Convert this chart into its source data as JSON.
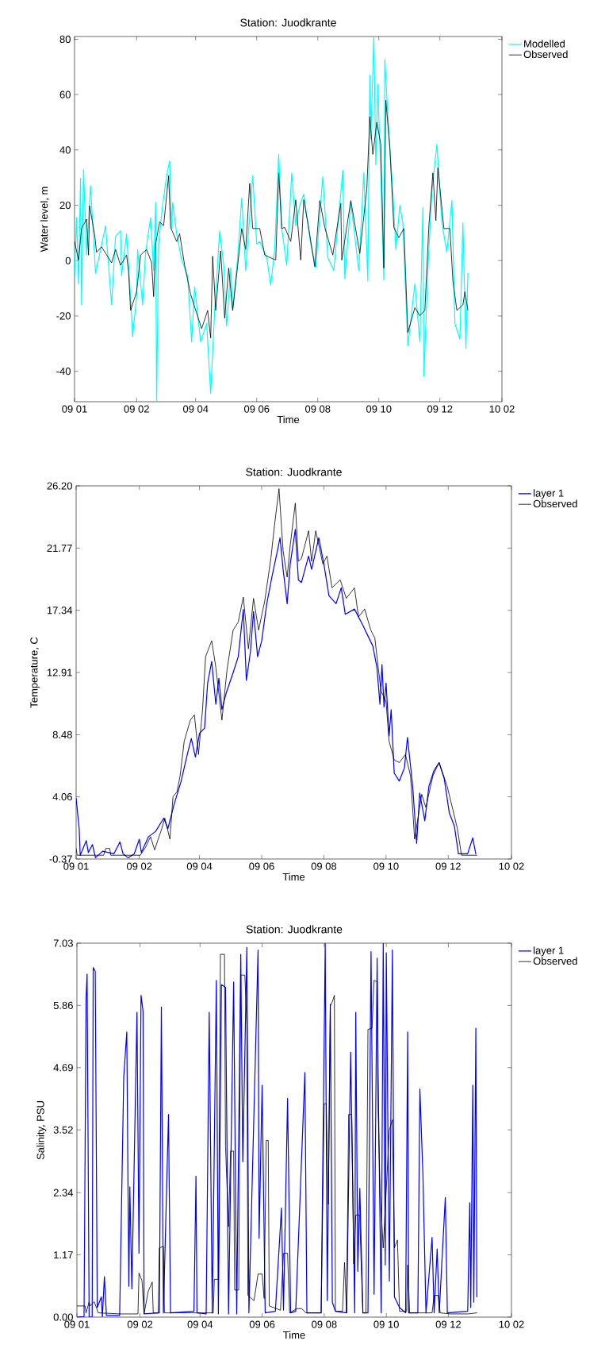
{
  "chart_data": [
    {
      "type": "line",
      "title": "Station: Juodkrante",
      "xlabel": "Time",
      "ylabel": "Water level, m",
      "xlim": [
        "2008-12-01",
        "2010-02-01"
      ],
      "xticks": [
        {
          "value": "2008-12-01",
          "label": "09 01"
        },
        {
          "value": "2009-02-01",
          "label": "09 02"
        },
        {
          "value": "2009-04-01",
          "label": "09 04"
        },
        {
          "value": "2009-06-01",
          "label": "09 06"
        },
        {
          "value": "2009-08-01",
          "label": "09 08"
        },
        {
          "value": "2009-10-01",
          "label": "09 10"
        },
        {
          "value": "2009-12-01",
          "label": "09 12"
        },
        {
          "value": "2010-02-01",
          "label": "10 02"
        }
      ],
      "ylim": [
        -51,
        81
      ],
      "yticks": [
        -40,
        -20,
        0,
        20,
        40,
        60,
        80
      ],
      "legend": "top right",
      "series": [
        {
          "name": "Modelled",
          "color": "#00ffff",
          "x": [
            "2008-12-01",
            "2008-12-03",
            "2008-12-05",
            "2008-12-07",
            "2008-12-08",
            "2008-12-10",
            "2008-12-13",
            "2008-12-17",
            "2008-12-22",
            "2008-12-27",
            "2009-01-01",
            "2009-01-07",
            "2009-01-11",
            "2009-01-16",
            "2009-01-17",
            "2009-01-22",
            "2009-01-26",
            "2009-01-28",
            "2009-02-01",
            "2009-02-02",
            "2009-02-07",
            "2009-02-10",
            "2009-02-15",
            "2009-02-18",
            "2009-02-20",
            "2009-02-21",
            "2009-02-23",
            "2009-02-27",
            "2009-03-03",
            "2009-03-06",
            "2009-03-08",
            "2009-03-09",
            "2009-03-13",
            "2009-03-18",
            "2009-03-24",
            "2009-03-28",
            "2009-03-31",
            "2009-04-06",
            "2009-04-12",
            "2009-04-16",
            "2009-04-20",
            "2009-04-25",
            "2009-04-29",
            "2009-05-02",
            "2009-05-06",
            "2009-05-08",
            "2009-05-13",
            "2009-05-17",
            "2009-05-21",
            "2009-05-28",
            "2009-06-01",
            "2009-06-04",
            "2009-06-11",
            "2009-06-15",
            "2009-06-19",
            "2009-06-23",
            "2009-06-26",
            "2009-07-01",
            "2009-07-06",
            "2009-07-10",
            "2009-07-14",
            "2009-07-18",
            "2009-07-25",
            "2009-07-30",
            "2009-08-06",
            "2009-08-11",
            "2009-08-17",
            "2009-08-26",
            "2009-08-28",
            "2009-09-03",
            "2009-09-11",
            "2009-09-16",
            "2009-09-20",
            "2009-09-22",
            "2009-09-23",
            "2009-09-26",
            "2009-09-28",
            "2009-09-30",
            "2009-10-03",
            "2009-10-06",
            "2009-10-07",
            "2009-10-11",
            "2009-10-15",
            "2009-10-18",
            "2009-10-22",
            "2009-10-25",
            "2009-10-28",
            "2009-10-30",
            "2009-11-06",
            "2009-11-11",
            "2009-11-14",
            "2009-11-15",
            "2009-11-19",
            "2009-11-23",
            "2009-11-28",
            "2009-12-03",
            "2009-12-08",
            "2009-12-13",
            "2009-12-16",
            "2009-12-21",
            "2009-12-24",
            "2009-12-27",
            "2009-12-29"
          ],
          "values": [
            -5.5,
            15.5,
            -8.4,
            29.8,
            -16,
            33,
            2,
            27,
            -4.6,
            4,
            12.6,
            -16,
            8.8,
            10.7,
            -5.5,
            9.7,
            -13,
            -27.5,
            -13,
            4,
            -16,
            3,
            15.5,
            -3.6,
            21,
            -51,
            6,
            20,
            30.7,
            36,
            11.6,
            21,
            9.7,
            0.2,
            -5.5,
            -29.4,
            -9.4,
            -29.4,
            -22.7,
            -48,
            -18,
            10.7,
            -1.7,
            -23.7,
            -2.7,
            -18,
            1.1,
            22.6,
            -3.6,
            30.7,
            6,
            6.9,
            1.1,
            -8.9,
            4,
            38.4,
            11.6,
            -1.7,
            31.7,
            12.6,
            20,
            24,
            6,
            -2.7,
            30.3,
            1.1,
            -3.6,
            32.6,
            -6.5,
            21,
            -3.6,
            31.7,
            -7.4,
            67,
            44,
            81,
            34.6,
            63.7,
            29.8,
            -7,
            72.7,
            46,
            25,
            4,
            20,
            13.6,
            -13,
            -30.8,
            -8.4,
            -29.4,
            19.3,
            -41.8,
            -3.6,
            25,
            42,
            13.6,
            3,
            21.7,
            -22.7,
            -28.4,
            13.6,
            -31.8,
            -4.6
          ]
        },
        {
          "name": "Observed",
          "color": "#000000",
          "x": [
            "2008-12-01",
            "2008-12-05",
            "2008-12-08",
            "2008-12-13",
            "2008-12-15",
            "2008-12-16",
            "2008-12-21",
            "2008-12-23",
            "2008-12-28",
            "2009-01-07",
            "2009-01-11",
            "2009-01-16",
            "2009-01-22",
            "2009-01-24",
            "2009-01-26",
            "2009-02-01",
            "2009-02-05",
            "2009-02-11",
            "2009-02-16",
            "2009-02-18",
            "2009-02-20",
            "2009-02-24",
            "2009-02-28",
            "2009-03-05",
            "2009-03-07",
            "2009-03-13",
            "2009-03-16",
            "2009-03-21",
            "2009-03-27",
            "2009-04-02",
            "2009-04-07",
            "2009-04-13",
            "2009-04-16",
            "2009-04-18",
            "2009-04-21",
            "2009-04-26",
            "2009-04-30",
            "2009-05-04",
            "2009-05-08",
            "2009-05-13",
            "2009-05-17",
            "2009-05-21",
            "2009-05-25",
            "2009-05-28",
            "2009-06-04",
            "2009-06-09",
            "2009-06-20",
            "2009-06-23",
            "2009-06-26",
            "2009-06-29",
            "2009-07-05",
            "2009-07-10",
            "2009-07-15",
            "2009-07-18",
            "2009-07-23",
            "2009-07-29",
            "2009-08-03",
            "2009-08-08",
            "2009-08-16",
            "2009-08-24",
            "2009-08-25",
            "2009-09-03",
            "2009-09-12",
            "2009-09-19",
            "2009-09-22",
            "2009-09-25",
            "2009-09-29",
            "2009-10-03",
            "2009-10-06",
            "2009-10-08",
            "2009-10-12",
            "2009-10-16",
            "2009-10-21",
            "2009-10-26",
            "2009-10-30",
            "2009-11-06",
            "2009-11-11",
            "2009-11-16",
            "2009-11-20",
            "2009-11-24",
            "2009-11-27",
            "2009-11-29",
            "2009-12-05",
            "2009-12-11",
            "2009-12-14",
            "2009-12-18",
            "2009-12-24",
            "2009-12-26",
            "2009-12-29"
          ],
          "values": [
            6.9,
            0.2,
            11.6,
            15,
            2,
            19.8,
            9.7,
            3,
            5,
            -0.8,
            4,
            -1.7,
            2,
            -4.1,
            -18,
            -11.3,
            2,
            4,
            -0.8,
            -13,
            6,
            14,
            12.6,
            30.7,
            12,
            6.9,
            9.7,
            -1.7,
            -12.2,
            -19,
            -24.6,
            -18,
            -28,
            1.6,
            -18,
            3.5,
            -20.8,
            -2.7,
            -18,
            -1.7,
            11.6,
            4,
            27.9,
            11.6,
            11.6,
            2,
            0.2,
            31.7,
            11.6,
            12,
            6.9,
            22,
            0.2,
            22,
            11.6,
            -2.2,
            21.7,
            12,
            2,
            20.7,
            0.2,
            21.7,
            2.6,
            26,
            52,
            38.4,
            50,
            42,
            -2.7,
            58,
            40.8,
            12,
            8.3,
            11.6,
            -26,
            -17,
            -19.9,
            -18,
            12.6,
            31.7,
            14.5,
            33.6,
            11.6,
            11.6,
            -7.4,
            -18,
            -16,
            -11.3,
            -18
          ]
        }
      ]
    },
    {
      "type": "line",
      "title": "Station: Juodkrante",
      "xlabel": "Time",
      "ylabel": "Temperature, C",
      "xlim": [
        "2008-12-01",
        "2010-02-01"
      ],
      "xticks": [
        {
          "value": "2008-12-01",
          "label": "09 01"
        },
        {
          "value": "2009-02-01",
          "label": "09 02"
        },
        {
          "value": "2009-04-01",
          "label": "09 04"
        },
        {
          "value": "2009-06-01",
          "label": "09 06"
        },
        {
          "value": "2009-08-01",
          "label": "09 08"
        },
        {
          "value": "2009-10-01",
          "label": "09 10"
        },
        {
          "value": "2009-12-01",
          "label": "09 12"
        },
        {
          "value": "2010-02-01",
          "label": "10 02"
        }
      ],
      "ylim": [
        -0.37,
        26.2
      ],
      "yticks": [
        -0.37,
        4.06,
        8.48,
        12.91,
        17.34,
        21.77,
        {
          "value": 26.2,
          "label": "26.20"
        }
      ],
      "legend": "top right",
      "series": [
        {
          "name": "layer 1",
          "color": "#0000ff",
          "x": [
            "2008-12-01",
            "2008-12-04",
            "2008-12-05",
            "2008-12-11",
            "2008-12-13",
            "2008-12-17",
            "2008-12-20",
            "2008-12-27",
            "2009-01-07",
            "2009-01-13",
            "2009-01-16",
            "2009-01-21",
            "2009-01-27",
            "2009-02-01",
            "2009-02-03",
            "2009-02-10",
            "2009-02-17",
            "2009-02-25",
            "2009-03-01",
            "2009-03-07",
            "2009-03-14",
            "2009-03-20",
            "2009-03-24",
            "2009-03-28",
            "2009-04-01",
            "2009-04-06",
            "2009-04-09",
            "2009-04-13",
            "2009-04-17",
            "2009-04-20",
            "2009-04-23",
            "2009-04-27",
            "2009-05-04",
            "2009-05-09",
            "2009-05-14",
            "2009-05-17",
            "2009-05-21",
            "2009-05-24",
            "2009-05-28",
            "2009-06-01",
            "2009-06-06",
            "2009-06-11",
            "2009-06-17",
            "2009-06-19",
            "2009-06-22",
            "2009-06-26",
            "2009-06-29",
            "2009-07-04",
            "2009-07-07",
            "2009-07-10",
            "2009-07-17",
            "2009-07-20",
            "2009-07-27",
            "2009-08-01",
            "2009-08-06",
            "2009-08-13",
            "2009-08-18",
            "2009-08-22",
            "2009-08-31",
            "2009-09-08",
            "2009-09-13",
            "2009-09-18",
            "2009-09-22",
            "2009-09-25",
            "2009-09-27",
            "2009-09-29",
            "2009-10-01",
            "2009-10-04",
            "2009-10-06",
            "2009-10-09",
            "2009-10-14",
            "2009-10-19",
            "2009-10-22",
            "2009-10-27",
            "2009-10-31",
            "2009-11-03",
            "2009-11-08",
            "2009-11-12",
            "2009-11-17",
            "2009-11-22",
            "2009-11-27",
            "2009-12-02",
            "2009-12-07",
            "2009-12-11",
            "2009-12-20",
            "2009-12-25",
            "2009-12-28"
          ],
          "values": [
            3.96,
            1.79,
            -0.1,
            0.94,
            0.09,
            0.66,
            -0.28,
            0.19,
            0,
            0.85,
            0,
            -0.28,
            0,
            1.04,
            0.09,
            1.22,
            1.6,
            2.54,
            1.79,
            3.49,
            5.18,
            7.07,
            8.2,
            6.88,
            8.58,
            8.95,
            12.16,
            13.7,
            10.65,
            12.5,
            10.27,
            11.4,
            12.9,
            14.04,
            17.4,
            12.35,
            14.4,
            17.25,
            14.04,
            15.17,
            17.81,
            19.7,
            21.77,
            22.5,
            20.26,
            17.81,
            20.64,
            23.1,
            19.5,
            19.32,
            21.2,
            20.26,
            22.5,
            20.64,
            18.38,
            17.81,
            18.94,
            17.06,
            17.43,
            16.3,
            15.55,
            14.8,
            13.29,
            10.65,
            13.48,
            10.46,
            12.16,
            8.39,
            10.27,
            5.75,
            5.18,
            6.12,
            8.29,
            4.9,
            0.75,
            4.33,
            2.35,
            4.8,
            5.93,
            6.5,
            5.37,
            2.92,
            1.98,
            0,
            0,
            1.13,
            0
          ]
        },
        {
          "name": "Observed",
          "color": "#000000",
          "x": [
            "2008-12-01",
            "2008-12-02",
            "2008-12-28",
            "2008-12-30",
            "2009-01-03",
            "2009-01-04",
            "2009-02-02",
            "2009-02-07",
            "2009-02-12",
            "2009-02-16",
            "2009-02-23",
            "2009-02-26",
            "2009-03-03",
            "2009-03-06",
            "2009-03-10",
            "2009-03-13",
            "2009-03-17",
            "2009-03-23",
            "2009-03-27",
            "2009-03-31",
            "2009-04-04",
            "2009-04-07",
            "2009-04-13",
            "2009-04-17",
            "2009-04-23",
            "2009-04-28",
            "2009-05-04",
            "2009-05-09",
            "2009-05-14",
            "2009-05-19",
            "2009-05-24",
            "2009-05-29",
            "2009-06-04",
            "2009-06-10",
            "2009-06-14",
            "2009-06-18",
            "2009-06-22",
            "2009-06-26",
            "2009-06-29",
            "2009-07-04",
            "2009-07-07",
            "2009-07-10",
            "2009-07-17",
            "2009-07-20",
            "2009-07-24",
            "2009-07-31",
            "2009-08-04",
            "2009-08-09",
            "2009-08-17",
            "2009-08-23",
            "2009-08-31",
            "2009-09-04",
            "2009-09-10",
            "2009-09-16",
            "2009-09-20",
            "2009-09-26",
            "2009-10-01",
            "2009-10-04",
            "2009-10-09",
            "2009-10-14",
            "2009-10-20",
            "2009-10-25",
            "2009-10-29",
            "2009-11-05",
            "2009-11-09",
            "2009-11-16",
            "2009-11-22",
            "2009-11-30",
            "2009-12-10",
            "2009-12-14",
            "2009-12-29"
          ],
          "values": [
            0.38,
            -0.1,
            -0.1,
            0.38,
            0.38,
            -0.1,
            -0.1,
            0.45,
            1.22,
            0.28,
            1.79,
            2.54,
            1.04,
            4.06,
            4.43,
            5.56,
            8.01,
            9.52,
            9.9,
            7.07,
            10.27,
            14.04,
            15.17,
            13.29,
            9.52,
            13.1,
            15.93,
            16.5,
            18.28,
            14.6,
            18.19,
            15.93,
            18.0,
            21.02,
            23.66,
            26.0,
            21.58,
            19.7,
            21.96,
            24.97,
            20.83,
            21.02,
            23.0,
            20.83,
            23.0,
            20.64,
            21.2,
            18.94,
            19.51,
            18.19,
            18.94,
            16.87,
            17.43,
            15.93,
            15.36,
            11.59,
            10.84,
            8.01,
            6.69,
            6.5,
            7.07,
            5.56,
            1.04,
            4.24,
            3.3,
            5.56,
            6.5,
            4.8,
            1.79,
            -0.1,
            -0.1
          ]
        }
      ]
    },
    {
      "type": "line",
      "title": "Station: Juodkrante",
      "xlabel": "Time",
      "ylabel": "Salinity, PSU",
      "xlim": [
        "2008-12-01",
        "2010-02-01"
      ],
      "xticks": [
        {
          "value": "2008-12-01",
          "label": "09 01"
        },
        {
          "value": "2009-02-01",
          "label": "09 02"
        },
        {
          "value": "2009-04-01",
          "label": "09 04"
        },
        {
          "value": "2009-06-01",
          "label": "09 06"
        },
        {
          "value": "2009-08-01",
          "label": "09 08"
        },
        {
          "value": "2009-10-01",
          "label": "09 10"
        },
        {
          "value": "2009-12-01",
          "label": "09 12"
        },
        {
          "value": "2010-02-01",
          "label": "10 02"
        }
      ],
      "ylim": [
        0,
        7.03
      ],
      "yticks": [
        {
          "value": 0,
          "label": "0.00"
        },
        1.17,
        2.34,
        3.52,
        4.69,
        5.86,
        7.03
      ],
      "legend": "top right",
      "series": [
        {
          "name": "layer 1",
          "color": "#0000ff",
          "x": [
            "2008-12-01",
            "2008-12-08",
            "2008-12-10",
            "2008-12-11",
            "2008-12-13",
            "2008-12-16",
            "2008-12-17",
            "2008-12-19",
            "2008-12-21",
            "2008-12-25",
            "2008-12-26",
            "2008-12-28",
            "2008-12-30",
            "2009-01-12",
            "2009-01-16",
            "2009-01-19",
            "2009-01-21",
            "2009-01-22",
            "2009-01-24",
            "2009-01-29",
            "2009-01-31",
            "2009-02-02",
            "2009-02-04",
            "2009-02-05",
            "2009-02-20",
            "2009-02-22",
            "2009-02-24",
            "2009-03-01",
            "2009-03-03",
            "2009-03-26",
            "2009-03-28",
            "2009-03-29",
            "2009-04-07",
            "2009-04-10",
            "2009-04-13",
            "2009-04-17",
            "2009-04-19",
            "2009-04-22",
            "2009-04-26",
            "2009-04-29",
            "2009-05-04",
            "2009-05-07",
            "2009-05-11",
            "2009-05-13",
            "2009-05-17",
            "2009-05-19",
            "2009-05-28",
            "2009-05-29",
            "2009-06-01",
            "2009-06-04",
            "2009-06-14",
            "2009-06-20",
            "2009-06-22",
            "2009-06-26",
            "2009-06-29",
            "2009-07-04",
            "2009-07-13",
            "2009-07-15",
            "2009-07-29",
            "2009-08-02",
            "2009-08-04",
            "2009-08-07",
            "2009-08-09",
            "2009-08-12",
            "2009-08-23",
            "2009-08-27",
            "2009-08-31",
            "2009-09-01",
            "2009-09-03",
            "2009-09-05",
            "2009-09-08",
            "2009-09-13",
            "2009-09-16",
            "2009-09-19",
            "2009-09-22",
            "2009-09-23",
            "2009-09-26",
            "2009-09-28",
            "2009-09-30",
            "2009-10-01",
            "2009-10-04",
            "2009-10-07",
            "2009-10-09",
            "2009-10-14",
            "2009-10-20",
            "2009-10-22",
            "2009-10-23",
            "2009-11-01",
            "2009-11-03",
            "2009-11-06",
            "2009-11-09",
            "2009-11-15",
            "2009-11-17",
            "2009-11-20",
            "2009-11-22",
            "2009-11-28",
            "2009-11-30",
            "2009-12-20",
            "2009-12-22",
            "2009-12-23",
            "2009-12-25",
            "2009-12-26",
            "2009-12-28",
            "2009-12-29"
          ],
          "values": [
            0,
            0.01,
            6.0,
            6.45,
            0,
            0,
            6.57,
            6.5,
            0.18,
            0.38,
            0,
            0.76,
            0.03,
            0.03,
            4.51,
            5.36,
            0.58,
            2.45,
            0.53,
            5.73,
            1.2,
            6.05,
            5.75,
            0.06,
            0.08,
            5.83,
            0.08,
            3.81,
            0.08,
            0.11,
            2.65,
            0.08,
            0.06,
            5.73,
            0.08,
            6.33,
            0.06,
            6.25,
            6.2,
            0.06,
            6.3,
            0.06,
            6.82,
            2.92,
            6.95,
            0.08,
            6.9,
            1.48,
            4.36,
            0.08,
            0.11,
            2.05,
            0.13,
            4.11,
            0.08,
            0.11,
            4.6,
            0.08,
            0.08,
            7.03,
            0.31,
            5.88,
            0.28,
            0.11,
            0.08,
            4.98,
            0.08,
            5.73,
            0.86,
            2.42,
            0.08,
            0.08,
            6.87,
            0.43,
            6.75,
            4.46,
            0.08,
            7.03,
            0.98,
            6.85,
            0.68,
            6.9,
            0.38,
            0.18,
            0.08,
            5.36,
            0.08,
            0.08,
            4.29,
            2.67,
            0.08,
            1.5,
            0.08,
            1.28,
            0.08,
            2.25,
            0.08,
            0.11,
            2.15,
            0.18,
            4.36,
            0.28,
            5.43,
            0.38
          ]
        },
        {
          "name": "Observed",
          "color": "#000000",
          "x": [
            "2008-12-01",
            "2008-12-09",
            "2008-12-10",
            "2008-12-13",
            "2008-12-14",
            "2008-12-18",
            "2008-12-22",
            "2009-01-13",
            "2009-01-30",
            "2009-01-31",
            "2009-02-03",
            "2009-02-05",
            "2009-02-09",
            "2009-02-13",
            "2009-02-14",
            "2009-02-19",
            "2009-02-20",
            "2009-02-24",
            "2009-02-25",
            "2009-04-14",
            "2009-04-15",
            "2009-04-19",
            "2009-04-21",
            "2009-04-25",
            "2009-04-26",
            "2009-04-29",
            "2009-05-01",
            "2009-05-04",
            "2009-05-05",
            "2009-05-09",
            "2009-05-11",
            "2009-05-15",
            "2009-05-17",
            "2009-05-18",
            "2009-05-24",
            "2009-05-28",
            "2009-06-01",
            "2009-06-03",
            "2009-06-05",
            "2009-06-07",
            "2009-06-08",
            "2009-06-19",
            "2009-06-22",
            "2009-06-26",
            "2009-06-28",
            "2009-07-05",
            "2009-07-10",
            "2009-07-14",
            "2009-07-29",
            "2009-08-01",
            "2009-08-03",
            "2009-08-05",
            "2009-08-07",
            "2009-08-09",
            "2009-08-11",
            "2009-08-12",
            "2009-08-19",
            "2009-08-21",
            "2009-08-23",
            "2009-08-25",
            "2009-08-28",
            "2009-08-30",
            "2009-09-01",
            "2009-09-05",
            "2009-09-06",
            "2009-09-08",
            "2009-09-11",
            "2009-09-13",
            "2009-09-17",
            "2009-09-19",
            "2009-09-22",
            "2009-09-23",
            "2009-09-25",
            "2009-09-28",
            "2009-10-04",
            "2009-10-07",
            "2009-10-09",
            "2009-10-12",
            "2009-10-14",
            "2009-10-21",
            "2009-10-22",
            "2009-10-24",
            "2009-11-15",
            "2009-11-17",
            "2009-11-21",
            "2009-11-23",
            "2009-12-03",
            "2009-12-20",
            "2009-12-29"
          ],
          "values": [
            0.21,
            0.21,
            0.08,
            0.29,
            0.21,
            0.29,
            0.08,
            0.06,
            0.06,
            0.83,
            0.68,
            0.06,
            0.48,
            0.66,
            0.08,
            0.08,
            1.3,
            1.33,
            0.08,
            0.08,
            0.71,
            0.71,
            6.82,
            6.82,
            3.22,
            1.7,
            3.12,
            3.12,
            0.51,
            0.51,
            6.43,
            6.43,
            5.5,
            0.41,
            0.31,
            0.81,
            0.81,
            0.35,
            3.32,
            3.32,
            0.21,
            0.13,
            1.2,
            1.2,
            0.08,
            0.16,
            0.16,
            0.08,
            0.08,
            4.01,
            4.01,
            2.12,
            5.85,
            5.93,
            6.05,
            0.11,
            0.11,
            1.03,
            0.08,
            3.81,
            3.81,
            1.0,
            1.92,
            1.92,
            1.2,
            0.08,
            0.08,
            5.41,
            5.43,
            6.33,
            6.3,
            3.91,
            2.3,
            1.3,
            3.52,
            3.71,
            1.3,
            1.45,
            0.11,
            0.11,
            0.98,
            0.08,
            0.08,
            0.41,
            0.41,
            0.08,
            0.06,
            0.06,
            0.08
          ]
        }
      ]
    }
  ]
}
